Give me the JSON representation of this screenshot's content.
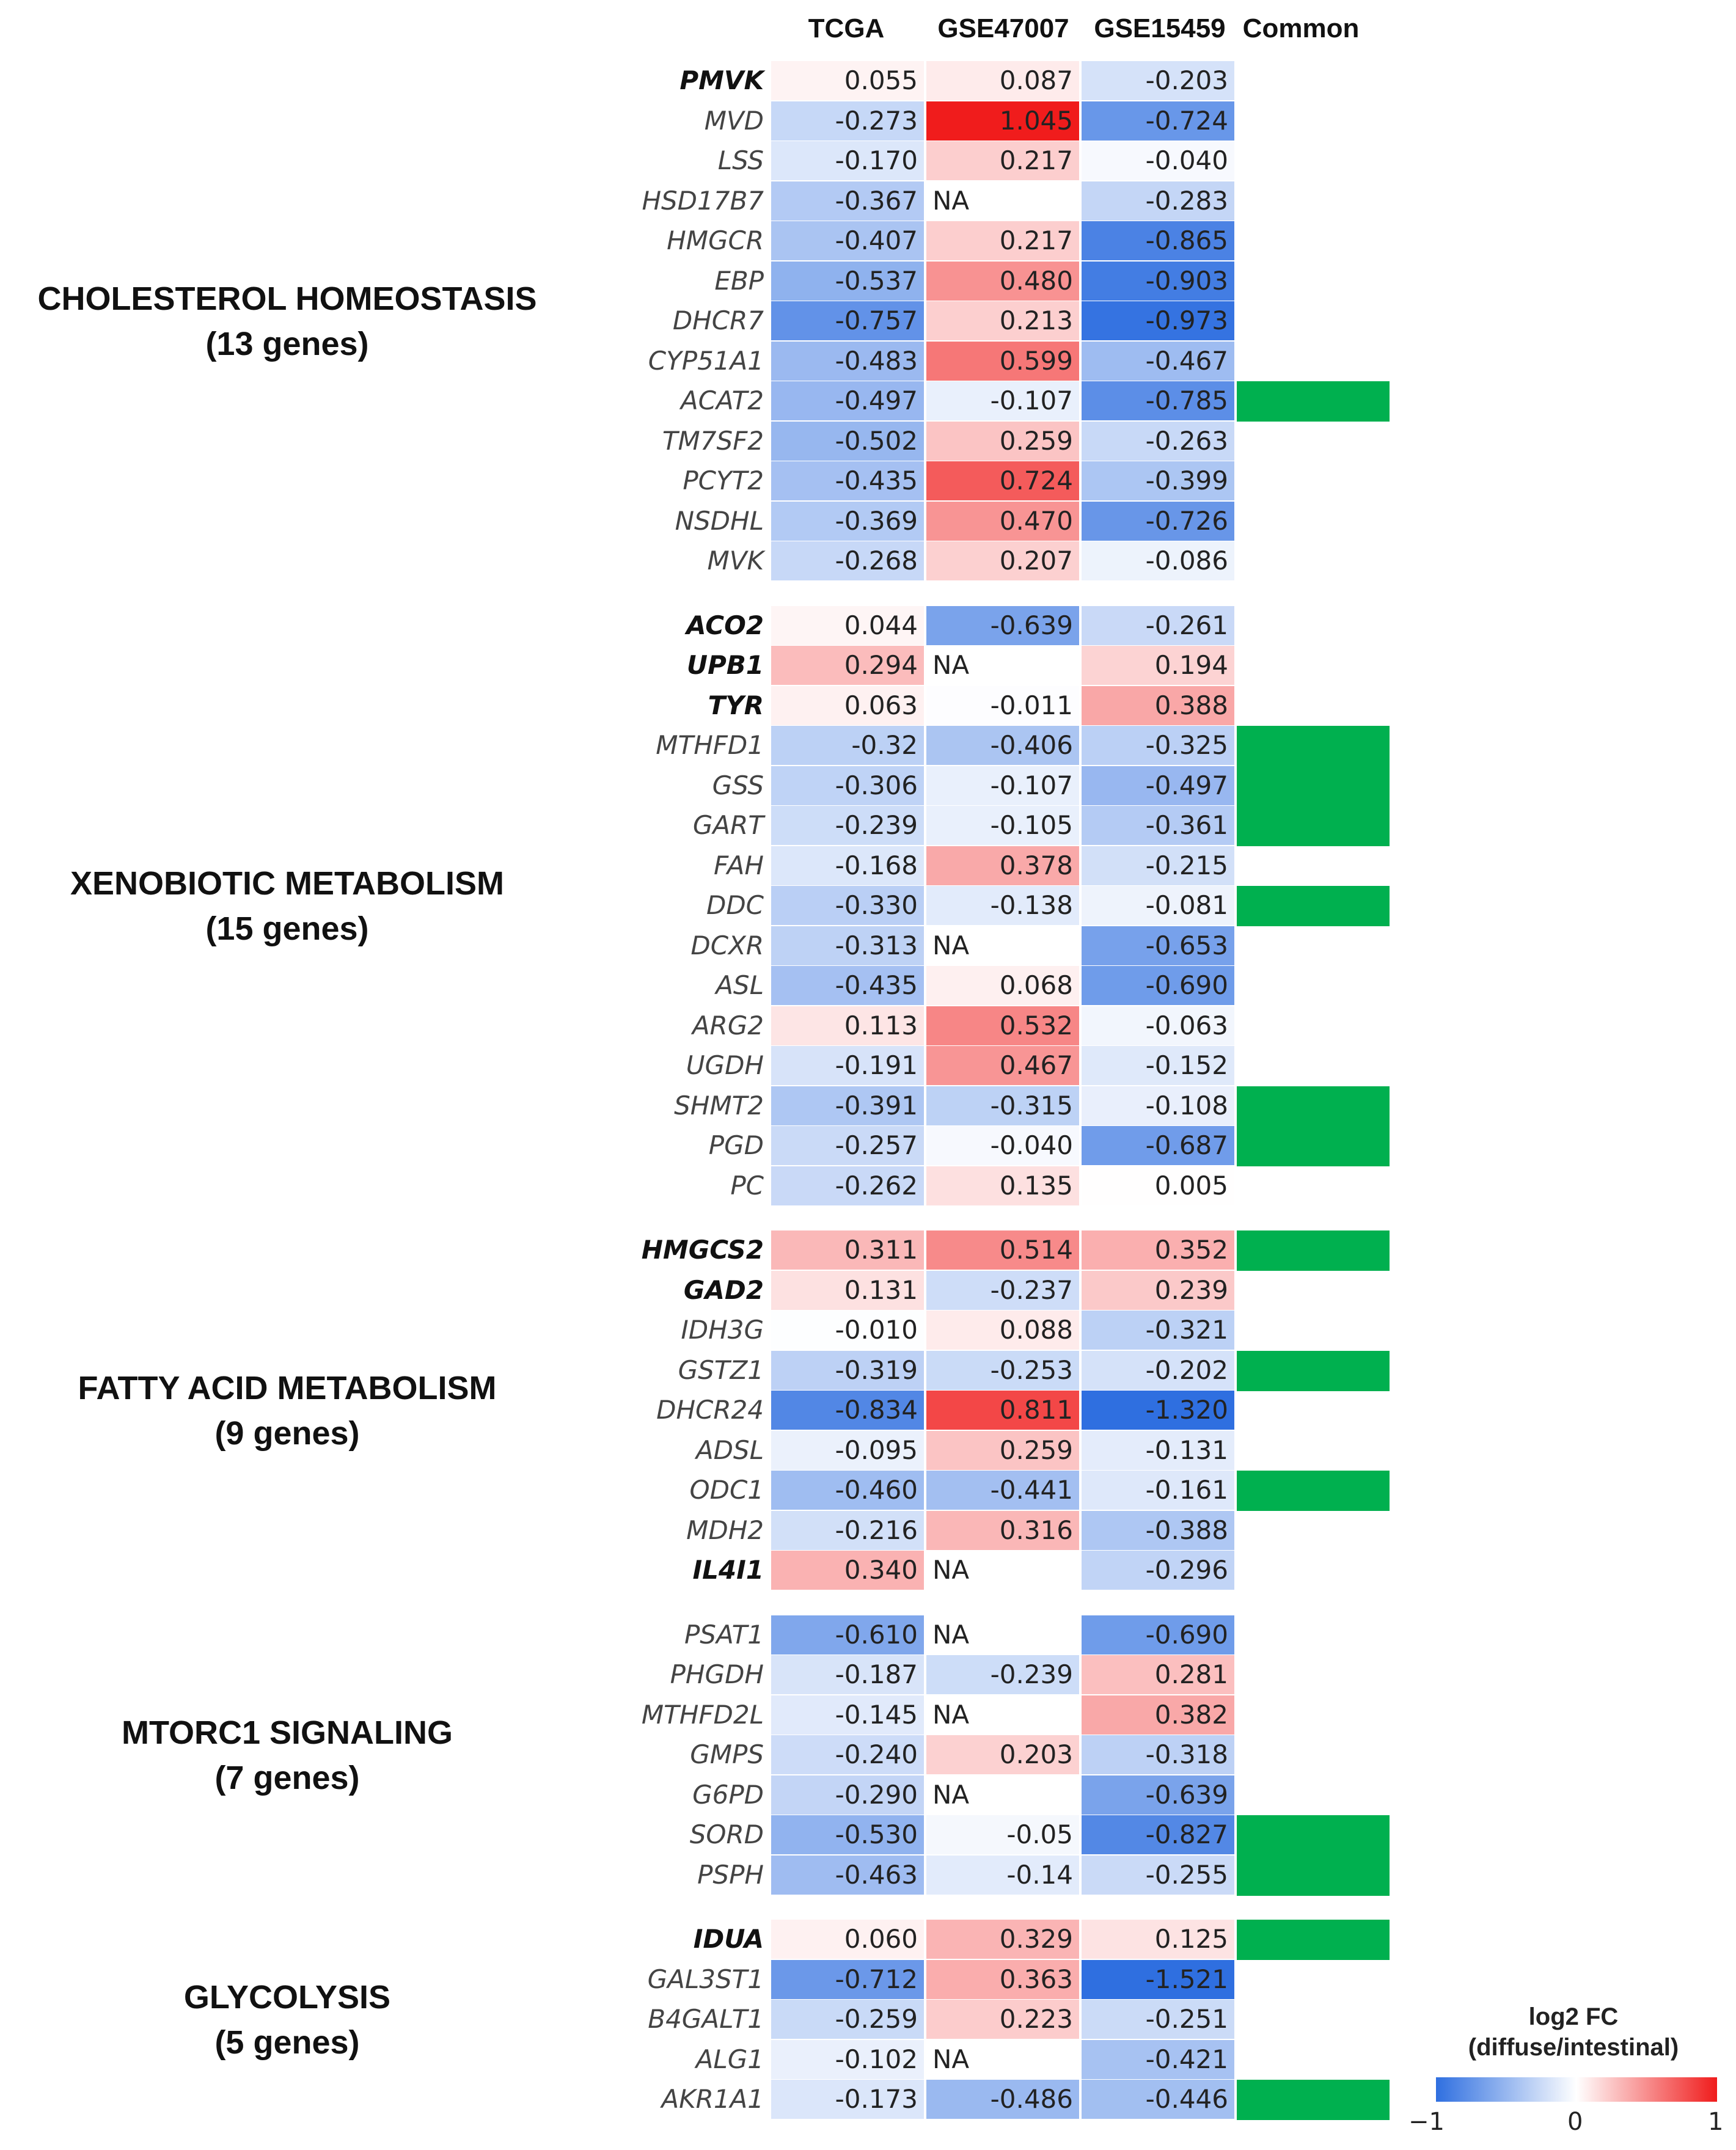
{
  "chart_data": {
    "type": "heatmap",
    "columns": [
      "TCGA",
      "GSE47007",
      "GSE15459",
      "Common"
    ],
    "groups": [
      {
        "title": "CHOLESTEROL HOMEOSTASIS",
        "subtitle": "(13 genes)",
        "rows": [
          {
            "gene": "PMVK",
            "bold": true,
            "tcga": "0.055",
            "gse47007": "0.087",
            "gse15459": "-0.203",
            "common": false
          },
          {
            "gene": "MVD",
            "bold": false,
            "tcga": "-0.273",
            "gse47007": "1.045",
            "gse15459": "-0.724",
            "common": false
          },
          {
            "gene": "LSS",
            "bold": false,
            "tcga": "-0.170",
            "gse47007": "0.217",
            "gse15459": "-0.040",
            "common": false
          },
          {
            "gene": "HSD17B7",
            "bold": false,
            "tcga": "-0.367",
            "gse47007": "NA",
            "gse15459": "-0.283",
            "common": false
          },
          {
            "gene": "HMGCR",
            "bold": false,
            "tcga": "-0.407",
            "gse47007": "0.217",
            "gse15459": "-0.865",
            "common": false
          },
          {
            "gene": "EBP",
            "bold": false,
            "tcga": "-0.537",
            "gse47007": "0.480",
            "gse15459": "-0.903",
            "common": false
          },
          {
            "gene": "DHCR7",
            "bold": false,
            "tcga": "-0.757",
            "gse47007": "0.213",
            "gse15459": "-0.973",
            "common": false
          },
          {
            "gene": "CYP51A1",
            "bold": false,
            "tcga": "-0.483",
            "gse47007": "0.599",
            "gse15459": "-0.467",
            "common": false
          },
          {
            "gene": "ACAT2",
            "bold": false,
            "tcga": "-0.497",
            "gse47007": "-0.107",
            "gse15459": "-0.785",
            "common": true
          },
          {
            "gene": "TM7SF2",
            "bold": false,
            "tcga": "-0.502",
            "gse47007": "0.259",
            "gse15459": "-0.263",
            "common": false
          },
          {
            "gene": "PCYT2",
            "bold": false,
            "tcga": "-0.435",
            "gse47007": "0.724",
            "gse15459": "-0.399",
            "common": false
          },
          {
            "gene": "NSDHL",
            "bold": false,
            "tcga": "-0.369",
            "gse47007": "0.470",
            "gse15459": "-0.726",
            "common": false
          },
          {
            "gene": "MVK",
            "bold": false,
            "tcga": "-0.268",
            "gse47007": "0.207",
            "gse15459": "-0.086",
            "common": false
          }
        ]
      },
      {
        "title": "XENOBIOTIC METABOLISM",
        "subtitle": "(15 genes)",
        "rows": [
          {
            "gene": "ACO2",
            "bold": true,
            "tcga": "0.044",
            "gse47007": "-0.639",
            "gse15459": "-0.261",
            "common": false
          },
          {
            "gene": "UPB1",
            "bold": true,
            "tcga": "0.294",
            "gse47007": "NA",
            "gse15459": "0.194",
            "common": false
          },
          {
            "gene": "TYR",
            "bold": true,
            "tcga": "0.063",
            "gse47007": "-0.011",
            "gse15459": "0.388",
            "common": false
          },
          {
            "gene": "MTHFD1",
            "bold": false,
            "tcga": "-0.32",
            "gse47007": "-0.406",
            "gse15459": "-0.325",
            "common": true
          },
          {
            "gene": "GSS",
            "bold": false,
            "tcga": "-0.306",
            "gse47007": "-0.107",
            "gse15459": "-0.497",
            "common": true
          },
          {
            "gene": "GART",
            "bold": false,
            "tcga": "-0.239",
            "gse47007": "-0.105",
            "gse15459": "-0.361",
            "common": true
          },
          {
            "gene": "FAH",
            "bold": false,
            "tcga": "-0.168",
            "gse47007": "0.378",
            "gse15459": "-0.215",
            "common": false
          },
          {
            "gene": "DDC",
            "bold": false,
            "tcga": "-0.330",
            "gse47007": "-0.138",
            "gse15459": "-0.081",
            "common": true
          },
          {
            "gene": "DCXR",
            "bold": false,
            "tcga": "-0.313",
            "gse47007": "NA",
            "gse15459": "-0.653",
            "common": false
          },
          {
            "gene": "ASL",
            "bold": false,
            "tcga": "-0.435",
            "gse47007": "0.068",
            "gse15459": "-0.690",
            "common": false
          },
          {
            "gene": "ARG2",
            "bold": false,
            "tcga": "0.113",
            "gse47007": "0.532",
            "gse15459": "-0.063",
            "common": false
          },
          {
            "gene": "UGDH",
            "bold": false,
            "tcga": "-0.191",
            "gse47007": "0.467",
            "gse15459": "-0.152",
            "common": false
          },
          {
            "gene": "SHMT2",
            "bold": false,
            "tcga": "-0.391",
            "gse47007": "-0.315",
            "gse15459": "-0.108",
            "common": true
          },
          {
            "gene": "PGD",
            "bold": false,
            "tcga": "-0.257",
            "gse47007": "-0.040",
            "gse15459": "-0.687",
            "common": true
          },
          {
            "gene": "PC",
            "bold": false,
            "tcga": "-0.262",
            "gse47007": "0.135",
            "gse15459": "0.005",
            "common": false
          }
        ]
      },
      {
        "title": "FATTY ACID METABOLISM",
        "subtitle": "(9 genes)",
        "rows": [
          {
            "gene": "HMGCS2",
            "bold": true,
            "tcga": "0.311",
            "gse47007": "0.514",
            "gse15459": "0.352",
            "common": true
          },
          {
            "gene": "GAD2",
            "bold": true,
            "tcga": "0.131",
            "gse47007": "-0.237",
            "gse15459": "0.239",
            "common": false
          },
          {
            "gene": "IDH3G",
            "bold": false,
            "tcga": "-0.010",
            "gse47007": "0.088",
            "gse15459": "-0.321",
            "common": false
          },
          {
            "gene": "GSTZ1",
            "bold": false,
            "tcga": "-0.319",
            "gse47007": "-0.253",
            "gse15459": "-0.202",
            "common": true
          },
          {
            "gene": "DHCR24",
            "bold": false,
            "tcga": "-0.834",
            "gse47007": "0.811",
            "gse15459": "-1.320",
            "common": false
          },
          {
            "gene": "ADSL",
            "bold": false,
            "tcga": "-0.095",
            "gse47007": "0.259",
            "gse15459": "-0.131",
            "common": false
          },
          {
            "gene": "ODC1",
            "bold": false,
            "tcga": "-0.460",
            "gse47007": "-0.441",
            "gse15459": "-0.161",
            "common": true
          },
          {
            "gene": "MDH2",
            "bold": false,
            "tcga": "-0.216",
            "gse47007": "0.316",
            "gse15459": "-0.388",
            "common": false
          },
          {
            "gene": "IL4I1",
            "bold": true,
            "tcga": "0.340",
            "gse47007": "NA",
            "gse15459": "-0.296",
            "common": false
          }
        ]
      },
      {
        "title": "MTORC1 SIGNALING",
        "subtitle": "(7 genes)",
        "rows": [
          {
            "gene": "PSAT1",
            "bold": false,
            "tcga": "-0.610",
            "gse47007": "NA",
            "gse15459": "-0.690",
            "common": false
          },
          {
            "gene": "PHGDH",
            "bold": false,
            "tcga": "-0.187",
            "gse47007": "-0.239",
            "gse15459": "0.281",
            "common": false
          },
          {
            "gene": "MTHFD2L",
            "bold": false,
            "tcga": "-0.145",
            "gse47007": "NA",
            "gse15459": "0.382",
            "common": false
          },
          {
            "gene": "GMPS",
            "bold": false,
            "tcga": "-0.240",
            "gse47007": "0.203",
            "gse15459": "-0.318",
            "common": false
          },
          {
            "gene": "G6PD",
            "bold": false,
            "tcga": "-0.290",
            "gse47007": "NA",
            "gse15459": "-0.639",
            "common": false
          },
          {
            "gene": "SORD",
            "bold": false,
            "tcga": "-0.530",
            "gse47007": "-0.05",
            "gse15459": "-0.827",
            "common": true
          },
          {
            "gene": "PSPH",
            "bold": false,
            "tcga": "-0.463",
            "gse47007": "-0.14",
            "gse15459": "-0.255",
            "common": true
          }
        ]
      },
      {
        "title": "GLYCOLYSIS",
        "subtitle": "(5 genes)",
        "rows": [
          {
            "gene": "IDUA",
            "bold": true,
            "tcga": "0.060",
            "gse47007": "0.329",
            "gse15459": "0.125",
            "common": true
          },
          {
            "gene": "GAL3ST1",
            "bold": false,
            "tcga": "-0.712",
            "gse47007": "0.363",
            "gse15459": "-1.521",
            "common": false
          },
          {
            "gene": "B4GALT1",
            "bold": false,
            "tcga": "-0.259",
            "gse47007": "0.223",
            "gse15459": "-0.251",
            "common": false
          },
          {
            "gene": "ALG1",
            "bold": false,
            "tcga": "-0.102",
            "gse47007": "NA",
            "gse15459": "-0.421",
            "common": false
          },
          {
            "gene": "AKR1A1",
            "bold": false,
            "tcga": "-0.173",
            "gse47007": "-0.486",
            "gse15459": "-0.446",
            "common": true
          }
        ]
      }
    ],
    "color_scale": {
      "min": -1,
      "mid": 0,
      "max": 1,
      "low_color": "#2f6fe0",
      "mid_color": "#ffffff",
      "high_color": "#f01c1c"
    },
    "common_color": "#00b04f",
    "legend": {
      "title_line1": "log2 FC",
      "title_line2": "(diffuse/intestinal)",
      "ticks": [
        "−1",
        "0",
        "1"
      ]
    }
  }
}
